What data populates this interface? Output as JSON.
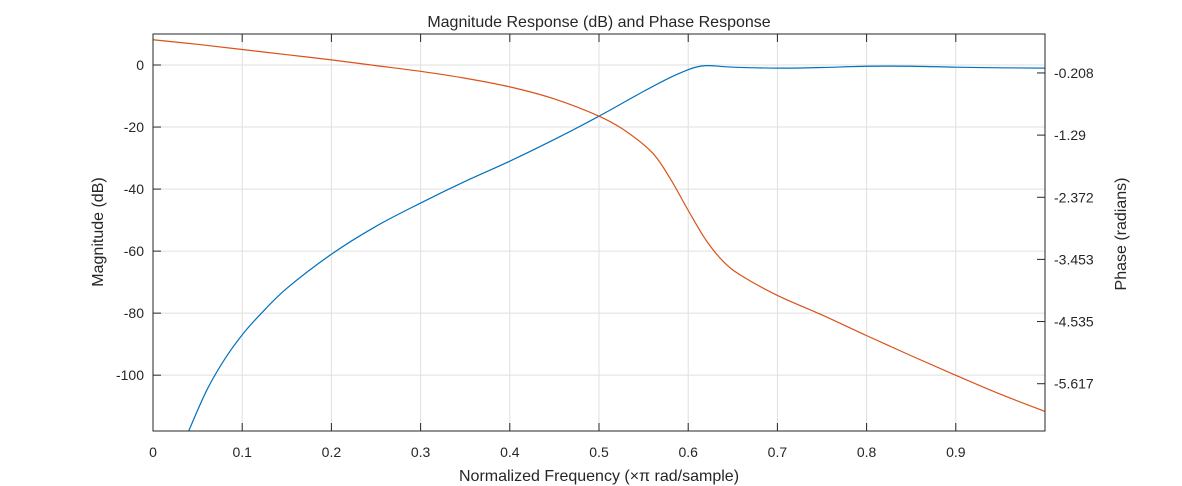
{
  "chart_data": {
    "type": "line",
    "title": "Magnitude Response (dB) and Phase Response",
    "xlabel": "Normalized Frequency (×π rad/sample)",
    "ylabel_left": "Magnitude (dB)",
    "ylabel_right": "Phase (radians)",
    "xlim": [
      0,
      1
    ],
    "ylim_left": [
      -118,
      10
    ],
    "ylim_right": [
      -6.44,
      0.47
    ],
    "x_ticks": [
      "0",
      "0.1",
      "0.2",
      "0.3",
      "0.4",
      "0.5",
      "0.6",
      "0.7",
      "0.8",
      "0.9"
    ],
    "x_tick_values": [
      0,
      0.1,
      0.2,
      0.3,
      0.4,
      0.5,
      0.6,
      0.7,
      0.8,
      0.9
    ],
    "y_ticks_left": [
      "0",
      "-20",
      "-40",
      "-60",
      "-80",
      "-100"
    ],
    "y_tick_values_left": [
      0,
      -20,
      -40,
      -60,
      -80,
      -100
    ],
    "y_ticks_right": [
      "-0.208",
      "-1.29",
      "-2.372",
      "-3.453",
      "-4.535",
      "-5.617"
    ],
    "y_tick_values_right": [
      -0.208,
      -1.29,
      -2.372,
      -3.453,
      -4.535,
      -5.617
    ],
    "grid": true,
    "series": [
      {
        "axis": "left",
        "color": "#0072BD",
        "x": [
          0.04,
          0.06,
          0.08,
          0.1,
          0.12,
          0.15,
          0.2,
          0.25,
          0.3,
          0.35,
          0.4,
          0.45,
          0.5,
          0.55,
          0.58,
          0.6,
          0.61,
          0.62,
          0.63,
          0.65,
          0.7,
          0.75,
          0.8,
          0.85,
          0.9,
          0.95,
          1.0
        ],
        "y": [
          -118,
          -105,
          -95,
          -87,
          -80.5,
          -72,
          -61,
          -52,
          -44.5,
          -37.5,
          -31,
          -24,
          -16.5,
          -8.5,
          -4,
          -1.5,
          -0.6,
          -0.2,
          -0.3,
          -0.7,
          -1,
          -0.8,
          -0.4,
          -0.4,
          -0.7,
          -0.9,
          -1
        ]
      },
      {
        "axis": "right",
        "color": "#D95319",
        "x": [
          0,
          0.05,
          0.1,
          0.15,
          0.2,
          0.25,
          0.3,
          0.35,
          0.4,
          0.45,
          0.5,
          0.53,
          0.56,
          0.58,
          0.6,
          0.62,
          0.64,
          0.66,
          0.7,
          0.75,
          0.8,
          0.85,
          0.9,
          0.95,
          1.0
        ],
        "y": [
          0.37,
          0.29,
          0.2,
          0.11,
          0.02,
          -0.08,
          -0.18,
          -0.3,
          -0.45,
          -0.66,
          -0.96,
          -1.22,
          -1.6,
          -2.05,
          -2.6,
          -3.12,
          -3.5,
          -3.74,
          -4.08,
          -4.42,
          -4.78,
          -5.13,
          -5.47,
          -5.8,
          -6.1
        ]
      }
    ]
  }
}
